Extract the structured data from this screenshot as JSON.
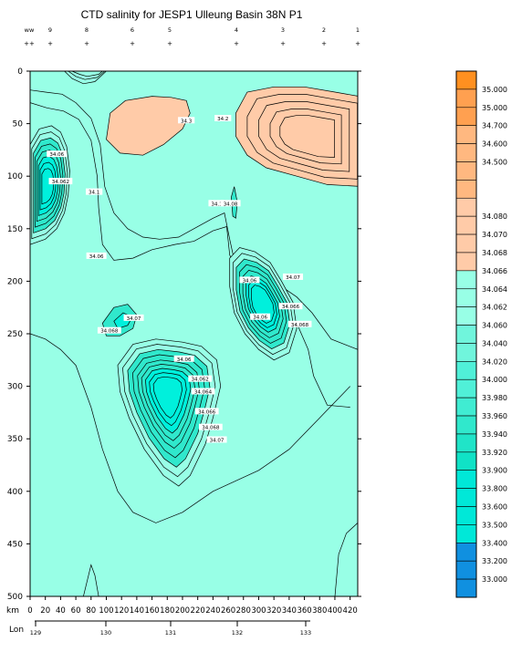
{
  "chart_data": {
    "type": "contour",
    "title": "CTD salinity for JESP1 Ulleung Basin 38N P1",
    "xlabel": "km",
    "x2label": "Lon",
    "xlim": [
      0,
      430
    ],
    "ylim": [
      500,
      0
    ],
    "x_ticks": [
      0,
      20,
      40,
      60,
      80,
      100,
      120,
      140,
      160,
      180,
      200,
      220,
      240,
      260,
      280,
      300,
      320,
      340,
      360,
      380,
      400,
      420
    ],
    "y_ticks": [
      0,
      50,
      100,
      150,
      200,
      250,
      300,
      350,
      400,
      450,
      500
    ],
    "lon_ticks": [
      129,
      130,
      131,
      132,
      133
    ],
    "lon_labels": [
      "129",
      "130",
      "131",
      "132",
      "133"
    ],
    "station_ids": [
      "ww",
      "9",
      "8",
      "6",
      "5",
      "4",
      "3",
      "2",
      "1"
    ],
    "station_marks": [
      "++",
      "+",
      "+",
      "+",
      "+",
      "+",
      "+",
      "+",
      "+"
    ],
    "station_x_km": [
      0,
      20,
      70,
      140,
      182,
      265,
      325,
      385,
      440
    ],
    "contour_labels": [
      {
        "text": "34.06",
        "x": 35,
        "y": 80
      },
      {
        "text": "34.062",
        "x": 40,
        "y": 106
      },
      {
        "text": "34.1",
        "x": 84,
        "y": 116
      },
      {
        "text": "34.06",
        "x": 87,
        "y": 177
      },
      {
        "text": "34.3",
        "x": 205,
        "y": 48
      },
      {
        "text": "34.2",
        "x": 253,
        "y": 46
      },
      {
        "text": "34.1",
        "x": 245,
        "y": 127
      },
      {
        "text": "34.08",
        "x": 263,
        "y": 127
      },
      {
        "text": "34.07",
        "x": 136,
        "y": 236
      },
      {
        "text": "34.068",
        "x": 104,
        "y": 248
      },
      {
        "text": "34.06",
        "x": 288,
        "y": 200
      },
      {
        "text": "34.07",
        "x": 345,
        "y": 197
      },
      {
        "text": "34.06",
        "x": 302,
        "y": 235
      },
      {
        "text": "34.066",
        "x": 342,
        "y": 225
      },
      {
        "text": "34.068",
        "x": 354,
        "y": 242
      },
      {
        "text": "34.06",
        "x": 202,
        "y": 275
      },
      {
        "text": "34.062",
        "x": 223,
        "y": 294
      },
      {
        "text": "34.064",
        "x": 227,
        "y": 306
      },
      {
        "text": "34.066",
        "x": 232,
        "y": 325
      },
      {
        "text": "34.068",
        "x": 237,
        "y": 340
      },
      {
        "text": "34.07",
        "x": 245,
        "y": 352
      }
    ],
    "colorbar": {
      "levels": [
        "35.000",
        "35.000",
        "34.700",
        "34.600",
        "34.500",
        "",
        "",
        "34.080",
        "34.070",
        "34.068",
        "34.066",
        "34.064",
        "34.062",
        "34.060",
        "34.040",
        "34.020",
        "34.000",
        "33.980",
        "33.960",
        "33.940",
        "33.920",
        "33.900",
        "33.800",
        "33.600",
        "33.500",
        "33.400",
        "33.200",
        "33.000",
        ""
      ],
      "colors": [
        "#ff9020",
        "#ffa050",
        "#ffa050",
        "#ffb880",
        "#ffb880",
        "#ffb880",
        "#ffb880",
        "#ffcba8",
        "#ffcba8",
        "#ffcba8",
        "#ffcba8",
        "#98ffe6",
        "#98ffe6",
        "#98ffe6",
        "#70f5dc",
        "#70f5dc",
        "#50f0d8",
        "#50f0d8",
        "#40ecd2",
        "#30e8cc",
        "#20e4c8",
        "#10e2c6",
        "#00e8d8",
        "#00e8d8",
        "#00e8d8",
        "#00e8d8",
        "#1090e0",
        "#1090e0",
        "#1090e0",
        "#1090e0",
        "#1090e0",
        "#1090e0",
        "#1090e0",
        "#1090e0",
        "#1090e0",
        "#1090e0"
      ]
    },
    "colors": {
      "background_water": "#98ffe6",
      "high_salinity": "#ffcba8",
      "low_salinity_core": "#30e8cc",
      "lowest_core": "#00f0dc"
    }
  }
}
